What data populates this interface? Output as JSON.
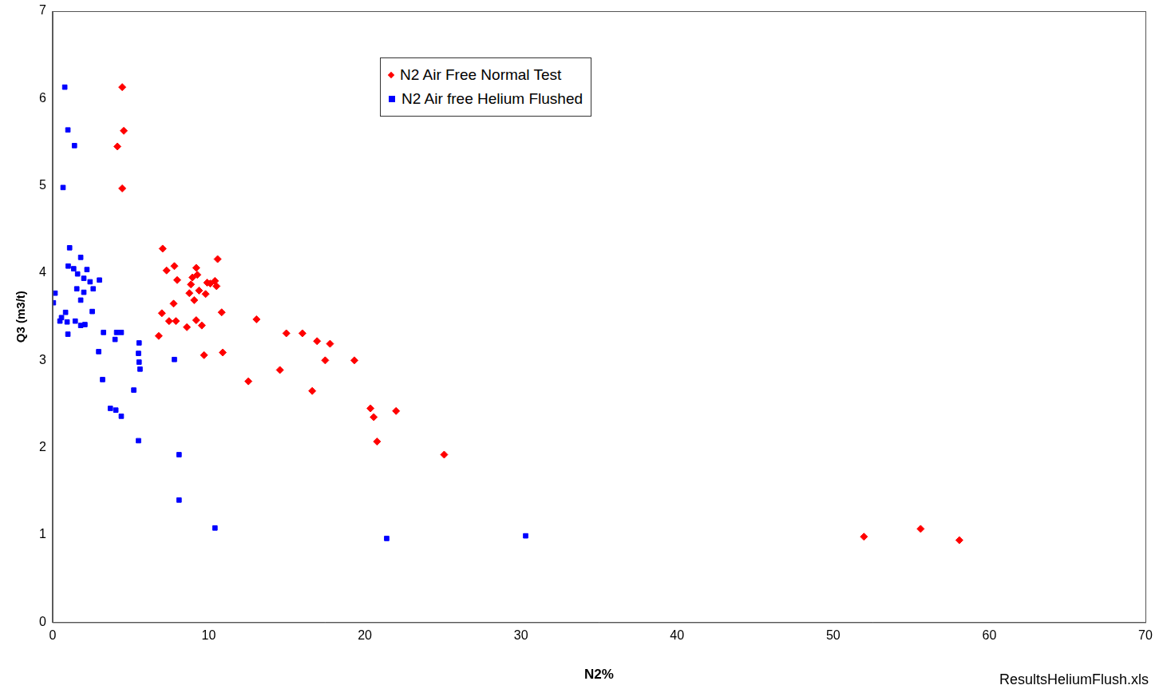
{
  "chart_data": {
    "type": "scatter",
    "x_label": "N2%",
    "y_label": "Q3 (m3/t)",
    "xlim": [
      0,
      70
    ],
    "xticks": [
      0,
      10,
      20,
      30,
      40,
      50,
      60,
      70
    ],
    "ylim": [
      0,
      7
    ],
    "yticks": [
      0,
      1,
      2,
      3,
      4,
      5,
      6,
      7
    ],
    "grid": false,
    "legend": "top",
    "annotation": "ResultsHeliumFlush.xls",
    "series": [
      {
        "name": "N2 Air Free Normal Test",
        "color": "#ff0000",
        "marker": "diamond",
        "x": [
          4.46,
          4.56,
          4.15,
          4.46,
          7.05,
          7.3,
          7.8,
          7.98,
          7.0,
          7.75,
          7.46,
          7.9,
          6.8,
          8.6,
          8.86,
          8.76,
          9.07,
          9.2,
          9.27,
          8.96,
          9.38,
          9.8,
          10.1,
          10.4,
          10.57,
          10.5,
          9.9,
          9.2,
          9.56,
          9.7,
          10.83,
          10.9,
          13.06,
          12.54,
          14.56,
          14.97,
          16.0,
          16.94,
          17.77,
          17.46,
          16.63,
          19.33,
          20.36,
          20.57,
          22.0,
          20.78,
          25.08,
          51.97,
          55.6,
          58.08
        ],
        "values": [
          6.13,
          5.63,
          5.45,
          4.97,
          4.28,
          4.03,
          4.08,
          3.92,
          3.54,
          3.65,
          3.45,
          3.45,
          3.28,
          3.38,
          3.87,
          3.77,
          3.69,
          4.06,
          3.98,
          3.95,
          3.8,
          3.76,
          3.88,
          3.91,
          4.16,
          3.85,
          3.89,
          3.46,
          3.4,
          3.06,
          3.55,
          3.09,
          3.47,
          2.76,
          2.89,
          3.31,
          3.31,
          3.22,
          3.19,
          3.0,
          2.65,
          3.0,
          2.45,
          2.35,
          2.42,
          2.07,
          1.92,
          0.98,
          1.07,
          0.94
        ]
      },
      {
        "name": "N2 Air free Helium Flushed",
        "color": "#0000ff",
        "marker": "square",
        "x": [
          0.78,
          0.98,
          1.4,
          0.67,
          1.09,
          0.16,
          0.05,
          1.0,
          1.35,
          1.8,
          1.6,
          2.0,
          2.2,
          2.4,
          3.0,
          2.6,
          2.0,
          1.55,
          1.8,
          0.83,
          0.57,
          0.47,
          0.93,
          1.45,
          1.8,
          2.07,
          2.54,
          0.98,
          3.26,
          4.1,
          4.4,
          4.0,
          5.54,
          5.5,
          5.54,
          5.6,
          2.95,
          3.2,
          5.2,
          3.7,
          4.05,
          4.4,
          5.5,
          7.8,
          8.1,
          8.1,
          10.4,
          21.4,
          30.3
        ],
        "values": [
          6.13,
          5.64,
          5.46,
          4.98,
          4.29,
          3.77,
          3.66,
          4.08,
          4.05,
          4.18,
          3.99,
          3.94,
          4.04,
          3.9,
          3.92,
          3.82,
          3.78,
          3.82,
          3.69,
          3.55,
          3.49,
          3.45,
          3.44,
          3.45,
          3.4,
          3.41,
          3.56,
          3.3,
          3.32,
          3.32,
          3.32,
          3.24,
          3.2,
          3.08,
          2.98,
          2.9,
          3.1,
          2.78,
          2.66,
          2.45,
          2.43,
          2.36,
          2.08,
          3.01,
          1.92,
          1.4,
          1.08,
          0.96,
          0.99
        ]
      }
    ]
  }
}
